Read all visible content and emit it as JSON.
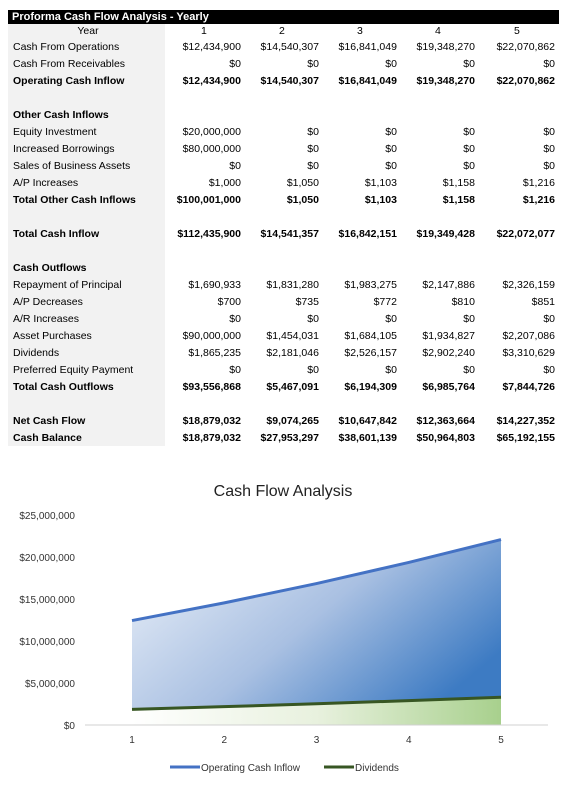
{
  "table": {
    "title": "Proforma Cash Flow Analysis - Yearly",
    "header": {
      "label": "Year",
      "cols": [
        "1",
        "2",
        "3",
        "4",
        "5"
      ]
    },
    "rows": [
      {
        "label": "Cash From Operations",
        "values": [
          "$12,434,900",
          "$14,540,307",
          "$16,841,049",
          "$19,348,270",
          "$22,070,862"
        ],
        "bold": false
      },
      {
        "label": "Cash From Receivables",
        "values": [
          "$0",
          "$0",
          "$0",
          "$0",
          "$0"
        ],
        "bold": false
      },
      {
        "label": "Operating Cash Inflow",
        "values": [
          "$12,434,900",
          "$14,540,307",
          "$16,841,049",
          "$19,348,270",
          "$22,070,862"
        ],
        "bold": true
      },
      {
        "label": "",
        "values": [
          "",
          "",
          "",
          "",
          ""
        ],
        "bold": false
      },
      {
        "label": "Other Cash Inflows",
        "values": [
          "",
          "",
          "",
          "",
          ""
        ],
        "bold": true
      },
      {
        "label": "Equity Investment",
        "values": [
          "$20,000,000",
          "$0",
          "$0",
          "$0",
          "$0"
        ],
        "bold": false
      },
      {
        "label": "Increased Borrowings",
        "values": [
          "$80,000,000",
          "$0",
          "$0",
          "$0",
          "$0"
        ],
        "bold": false
      },
      {
        "label": "Sales of Business Assets",
        "values": [
          "$0",
          "$0",
          "$0",
          "$0",
          "$0"
        ],
        "bold": false
      },
      {
        "label": "A/P Increases",
        "values": [
          "$1,000",
          "$1,050",
          "$1,103",
          "$1,158",
          "$1,216"
        ],
        "bold": false
      },
      {
        "label": "Total Other Cash Inflows",
        "values": [
          "$100,001,000",
          "$1,050",
          "$1,103",
          "$1,158",
          "$1,216"
        ],
        "bold": true
      },
      {
        "label": "",
        "values": [
          "",
          "",
          "",
          "",
          ""
        ],
        "bold": false
      },
      {
        "label": "Total Cash Inflow",
        "values": [
          "$112,435,900",
          "$14,541,357",
          "$16,842,151",
          "$19,349,428",
          "$22,072,077"
        ],
        "bold": true
      },
      {
        "label": "",
        "values": [
          "",
          "",
          "",
          "",
          ""
        ],
        "bold": false
      },
      {
        "label": "Cash Outflows",
        "values": [
          "",
          "",
          "",
          "",
          ""
        ],
        "bold": true
      },
      {
        "label": "Repayment of Principal",
        "values": [
          "$1,690,933",
          "$1,831,280",
          "$1,983,275",
          "$2,147,886",
          "$2,326,159"
        ],
        "bold": false
      },
      {
        "label": "A/P Decreases",
        "values": [
          "$700",
          "$735",
          "$772",
          "$810",
          "$851"
        ],
        "bold": false
      },
      {
        "label": "A/R Increases",
        "values": [
          "$0",
          "$0",
          "$0",
          "$0",
          "$0"
        ],
        "bold": false
      },
      {
        "label": "Asset Purchases",
        "values": [
          "$90,000,000",
          "$1,454,031",
          "$1,684,105",
          "$1,934,827",
          "$2,207,086"
        ],
        "bold": false
      },
      {
        "label": "Dividends",
        "values": [
          "$1,865,235",
          "$2,181,046",
          "$2,526,157",
          "$2,902,240",
          "$3,310,629"
        ],
        "bold": false
      },
      {
        "label": "Preferred Equity Payment",
        "values": [
          "$0",
          "$0",
          "$0",
          "$0",
          "$0"
        ],
        "bold": false
      },
      {
        "label": "Total Cash Outflows",
        "values": [
          "$93,556,868",
          "$5,467,091",
          "$6,194,309",
          "$6,985,764",
          "$7,844,726"
        ],
        "bold": true
      },
      {
        "label": "",
        "values": [
          "",
          "",
          "",
          "",
          ""
        ],
        "bold": false
      },
      {
        "label": "Net Cash Flow",
        "values": [
          "$18,879,032",
          "$9,074,265",
          "$10,647,842",
          "$12,363,664",
          "$14,227,352"
        ],
        "bold": true
      },
      {
        "label": "Cash Balance",
        "values": [
          "$18,879,032",
          "$27,953,297",
          "$38,601,139",
          "$50,964,803",
          "$65,192,155"
        ],
        "bold": true
      }
    ]
  },
  "chart_data": {
    "type": "area",
    "title": "Cash Flow Analysis",
    "x": [
      1,
      2,
      3,
      4,
      5
    ],
    "series": [
      {
        "name": "Operating Cash Inflow",
        "values": [
          12434900,
          14540307,
          16841049,
          19348270,
          22070862
        ],
        "color": "#4472c4"
      },
      {
        "name": "Dividends",
        "values": [
          1865235,
          2181046,
          2526157,
          2902240,
          3310629
        ],
        "color": "#375623"
      }
    ],
    "ylim": [
      0,
      25000000
    ],
    "yticks": [
      "$0",
      "$5,000,000",
      "$10,000,000",
      "$15,000,000",
      "$20,000,000",
      "$25,000,000"
    ],
    "xticks": [
      "1",
      "2",
      "3",
      "4",
      "5"
    ],
    "legend": "bottom",
    "grid": false
  }
}
